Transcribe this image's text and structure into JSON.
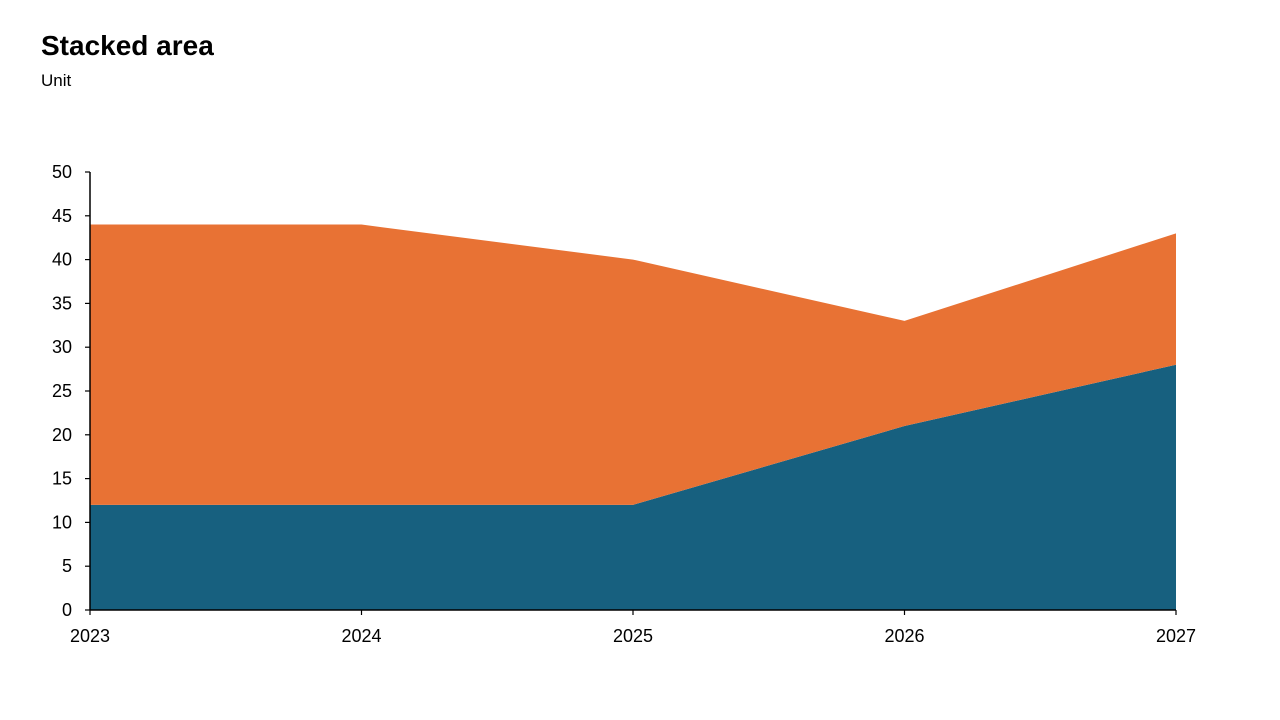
{
  "title": "Stacked area",
  "subtitle": "Unit",
  "chart_data": {
    "type": "area",
    "stacked": true,
    "title": "Stacked area",
    "subtitle": "Unit",
    "x": [
      "2023",
      "2024",
      "2025",
      "2026",
      "2027"
    ],
    "series": [
      {
        "values": [
          12,
          12,
          12,
          21,
          28
        ],
        "color": "#17607f"
      },
      {
        "values": [
          32,
          32,
          28,
          12,
          15
        ],
        "color": "#e87234"
      }
    ],
    "ylim": [
      0,
      50
    ],
    "yticks": [
      0,
      5,
      10,
      15,
      20,
      25,
      30,
      35,
      40,
      45,
      50
    ],
    "grid": false,
    "legend": "none"
  }
}
